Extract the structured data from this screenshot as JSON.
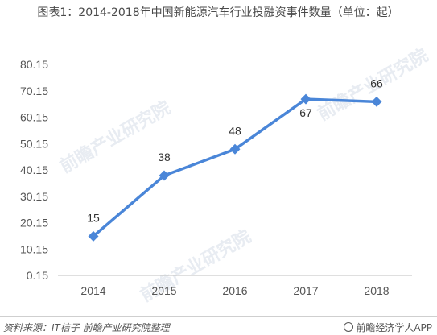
{
  "chart_data": {
    "type": "line",
    "title": "图表1：2014-2018年中国新能源汽车行业投融资事件数量（单位：起）",
    "categories": [
      "2014",
      "2015",
      "2016",
      "2017",
      "2018"
    ],
    "series": [
      {
        "values": [
          15,
          38,
          48,
          67,
          66
        ],
        "color": "#4a86d8"
      }
    ],
    "data_labels": [
      "15",
      "38",
      "48",
      "67",
      "66"
    ],
    "y_ticks": [
      "0.15",
      "10.15",
      "20.15",
      "30.15",
      "40.15",
      "50.15",
      "60.15",
      "70.15",
      "80.15"
    ],
    "ylim": [
      0.15,
      80.15
    ],
    "grid": false,
    "xlabel": "",
    "ylabel": ""
  },
  "watermark": "前瞻产业研究院",
  "footer": {
    "source": "资料来源：IT桔子 前瞻产业研究院整理",
    "brand": "前瞻经济学人APP"
  }
}
